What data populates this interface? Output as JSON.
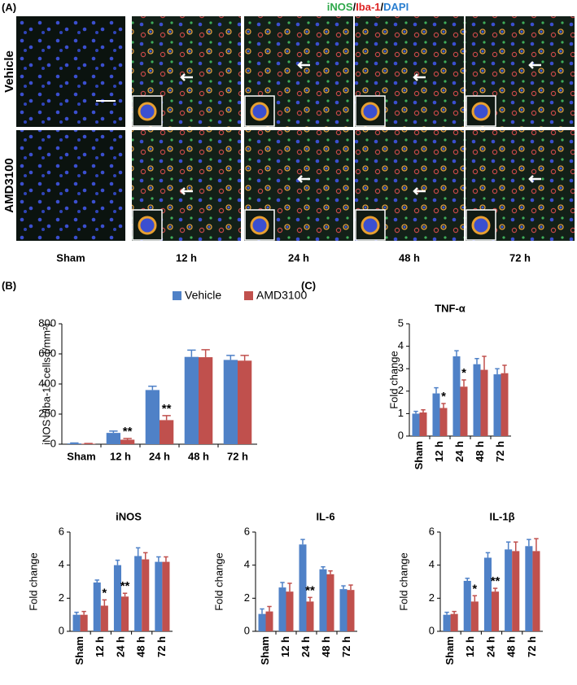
{
  "panel_a": {
    "label": "(A)",
    "title_parts": [
      "iNOS",
      "/",
      "Iba-1",
      "/",
      "DAPI"
    ],
    "rows": [
      "Vehicle",
      "AMD3100"
    ],
    "columns": [
      "Sham",
      "12 h",
      "24 h",
      "48 h",
      "72 h"
    ]
  },
  "chart_data": [
    {
      "type": "bar",
      "label": "(B)",
      "y_label": "iNOS⁺/Iba-1⁺ cells (/mm²)",
      "legend": true,
      "categories": [
        "Sham",
        "12 h",
        "24 h",
        "48 h",
        "72 h"
      ],
      "ylim": [
        0,
        800
      ],
      "yticks": [
        0,
        200,
        400,
        600,
        800
      ],
      "series": [
        {
          "name": "Vehicle",
          "color": "#4f81c7",
          "values": [
            5,
            75,
            360,
            580,
            560
          ],
          "errors": [
            3,
            12,
            25,
            45,
            30
          ]
        },
        {
          "name": "AMD3100",
          "color": "#c0504d",
          "values": [
            3,
            30,
            160,
            578,
            555
          ],
          "errors": [
            2,
            8,
            30,
            50,
            35
          ],
          "significance": [
            null,
            "**",
            "**",
            null,
            null
          ]
        }
      ]
    },
    {
      "type": "bar",
      "label": "(C)",
      "title": "TNF-α",
      "y_label": "Fold change",
      "categories": [
        "Sham",
        "12 h",
        "24 h",
        "48 h",
        "72 h"
      ],
      "ylim": [
        0,
        5
      ],
      "yticks": [
        0,
        1,
        2,
        3,
        4,
        5
      ],
      "series": [
        {
          "color": "#4f81c7",
          "values": [
            1.0,
            1.9,
            3.55,
            3.2,
            2.75
          ],
          "errors": [
            0.1,
            0.25,
            0.25,
            0.25,
            0.25
          ]
        },
        {
          "color": "#c0504d",
          "values": [
            1.05,
            1.25,
            2.2,
            2.95,
            2.8
          ],
          "errors": [
            0.12,
            0.2,
            0.3,
            0.6,
            0.35
          ],
          "significance": [
            null,
            "*",
            "*",
            null,
            null
          ]
        }
      ]
    },
    {
      "type": "bar",
      "title": "iNOS",
      "y_label": "Fold change",
      "categories": [
        "Sham",
        "12 h",
        "24 h",
        "48 h",
        "72 h"
      ],
      "ylim": [
        0,
        6
      ],
      "yticks": [
        0,
        2,
        4,
        6
      ],
      "series": [
        {
          "color": "#4f81c7",
          "values": [
            1.0,
            2.95,
            4.0,
            4.55,
            4.2
          ],
          "errors": [
            0.15,
            0.15,
            0.3,
            0.5,
            0.3
          ]
        },
        {
          "color": "#c0504d",
          "values": [
            1.0,
            1.55,
            2.1,
            4.35,
            4.2
          ],
          "errors": [
            0.2,
            0.35,
            0.2,
            0.4,
            0.3
          ],
          "significance": [
            null,
            "*",
            "**",
            null,
            null
          ]
        }
      ]
    },
    {
      "type": "bar",
      "title": "IL-6",
      "y_label": "Fold change",
      "categories": [
        "Sham",
        "12 h",
        "24 h",
        "48 h",
        "72 h"
      ],
      "ylim": [
        0,
        6
      ],
      "yticks": [
        0,
        2,
        4,
        6
      ],
      "series": [
        {
          "color": "#4f81c7",
          "values": [
            1.05,
            2.65,
            5.25,
            3.75,
            2.55
          ],
          "errors": [
            0.3,
            0.3,
            0.3,
            0.15,
            0.2
          ]
        },
        {
          "color": "#c0504d",
          "values": [
            1.2,
            2.4,
            1.8,
            3.45,
            2.5
          ],
          "errors": [
            0.3,
            0.5,
            0.25,
            0.2,
            0.3
          ],
          "significance": [
            null,
            null,
            "**",
            null,
            null
          ]
        }
      ]
    },
    {
      "type": "bar",
      "title": "IL-1β",
      "y_label": "Fold change",
      "categories": [
        "Sham",
        "12 h",
        "24 h",
        "48 h",
        "72 h"
      ],
      "ylim": [
        0,
        6
      ],
      "yticks": [
        0,
        2,
        4,
        6
      ],
      "series": [
        {
          "color": "#4f81c7",
          "values": [
            1.0,
            3.05,
            4.45,
            4.95,
            5.15
          ],
          "errors": [
            0.15,
            0.15,
            0.3,
            0.45,
            0.4
          ]
        },
        {
          "color": "#c0504d",
          "values": [
            1.05,
            1.8,
            2.4,
            4.85,
            4.85
          ],
          "errors": [
            0.15,
            0.35,
            0.2,
            0.55,
            0.75
          ],
          "significance": [
            null,
            "*",
            "**",
            null,
            null
          ]
        }
      ]
    }
  ]
}
